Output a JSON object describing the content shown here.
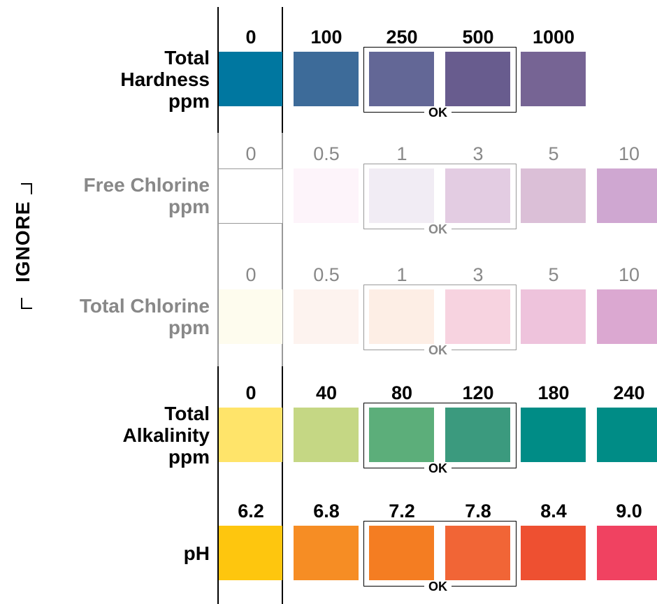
{
  "side_label": "IGNORE",
  "ok_label": "OK",
  "colors": {
    "active_text": "#000000",
    "muted_text": "#888888",
    "muted_line": "#999999"
  },
  "rows": [
    {
      "id": "total-hardness",
      "label_lines": [
        "Total",
        "Hardness",
        "ppm"
      ],
      "muted": false,
      "values": [
        "0",
        "100",
        "250",
        "500",
        "1000"
      ],
      "swatches": [
        "#0077a0",
        "#3d6b99",
        "#636796",
        "#685c8e",
        "#766494"
      ]
    },
    {
      "id": "free-chlorine",
      "label_lines": [
        "Free Chlorine",
        "ppm"
      ],
      "muted": true,
      "values": [
        "0",
        "0.5",
        "1",
        "3",
        "5",
        "10"
      ],
      "swatches": [
        "#ffffff",
        "#fdf4fa",
        "#f1ecf4",
        "#e3cce2",
        "#dbbfd7",
        "#cfa7d1"
      ]
    },
    {
      "id": "total-chlorine",
      "label_lines": [
        "Total Chlorine",
        "ppm"
      ],
      "muted": true,
      "values": [
        "0",
        "0.5",
        "1",
        "3",
        "5",
        "10"
      ],
      "swatches": [
        "#fefcee",
        "#fdf3ef",
        "#fdeee5",
        "#f7d3e0",
        "#eec3dc",
        "#dba8d1"
      ]
    },
    {
      "id": "total-alkalinity",
      "label_lines": [
        "Total",
        "Alkalinity",
        "ppm"
      ],
      "muted": false,
      "values": [
        "0",
        "40",
        "80",
        "120",
        "180",
        "240"
      ],
      "swatches": [
        "#ffe46a",
        "#c5d784",
        "#5cae7a",
        "#3b9a7e",
        "#008c86",
        "#008c86"
      ]
    },
    {
      "id": "ph",
      "label_lines": [
        "pH"
      ],
      "muted": false,
      "values": [
        "6.2",
        "6.8",
        "7.2",
        "7.8",
        "8.4",
        "9.0"
      ],
      "swatches": [
        "#fec60e",
        "#f68d24",
        "#f47d22",
        "#f16536",
        "#ee5031",
        "#f04261"
      ]
    }
  ]
}
